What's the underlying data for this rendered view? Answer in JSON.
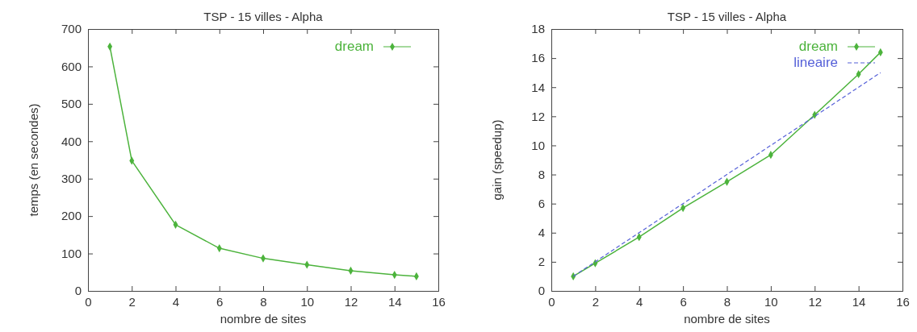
{
  "chart_data": [
    {
      "type": "line",
      "title": "TSP - 15 villes - Alpha",
      "xlabel": "nombre de sites",
      "ylabel": "temps (en secondes)",
      "x": [
        1,
        2,
        4,
        6,
        8,
        10,
        12,
        14,
        15
      ],
      "xlim": [
        0,
        16
      ],
      "xticks": [
        0,
        2,
        4,
        6,
        8,
        10,
        12,
        14,
        16
      ],
      "ylim": [
        0,
        700
      ],
      "yticks": [
        0,
        100,
        200,
        300,
        400,
        500,
        600,
        700
      ],
      "legend": "top right",
      "grid": false,
      "marker": "diamond",
      "line_style": "solid",
      "series": [
        {
          "name": "dream",
          "color": "#4cb33c",
          "values": [
            653,
            348,
            177,
            114,
            87,
            70,
            54,
            43,
            39
          ]
        }
      ]
    },
    {
      "type": "line",
      "title": "TSP - 15 villes - Alpha",
      "xlabel": "nombre de sites",
      "ylabel": "gain (speedup)",
      "x": [
        1,
        2,
        4,
        6,
        8,
        10,
        12,
        14,
        15
      ],
      "xlim": [
        0,
        16
      ],
      "xticks": [
        0,
        2,
        4,
        6,
        8,
        10,
        12,
        14,
        16
      ],
      "ylim": [
        0,
        18
      ],
      "yticks": [
        0,
        2,
        4,
        6,
        8,
        10,
        12,
        14,
        16,
        18
      ],
      "legend": "top right",
      "grid": false,
      "series": [
        {
          "name": "dream",
          "color": "#4cb33c",
          "marker": "diamond",
          "line_style": "solid",
          "values": [
            1,
            1.9,
            3.7,
            5.7,
            7.5,
            9.35,
            12.1,
            14.9,
            16.4
          ]
        },
        {
          "name": "lineaire",
          "color": "#5560d8",
          "marker": "none",
          "line_style": "dashed",
          "x": [
            1,
            15
          ],
          "values": [
            1,
            15
          ]
        }
      ]
    }
  ]
}
